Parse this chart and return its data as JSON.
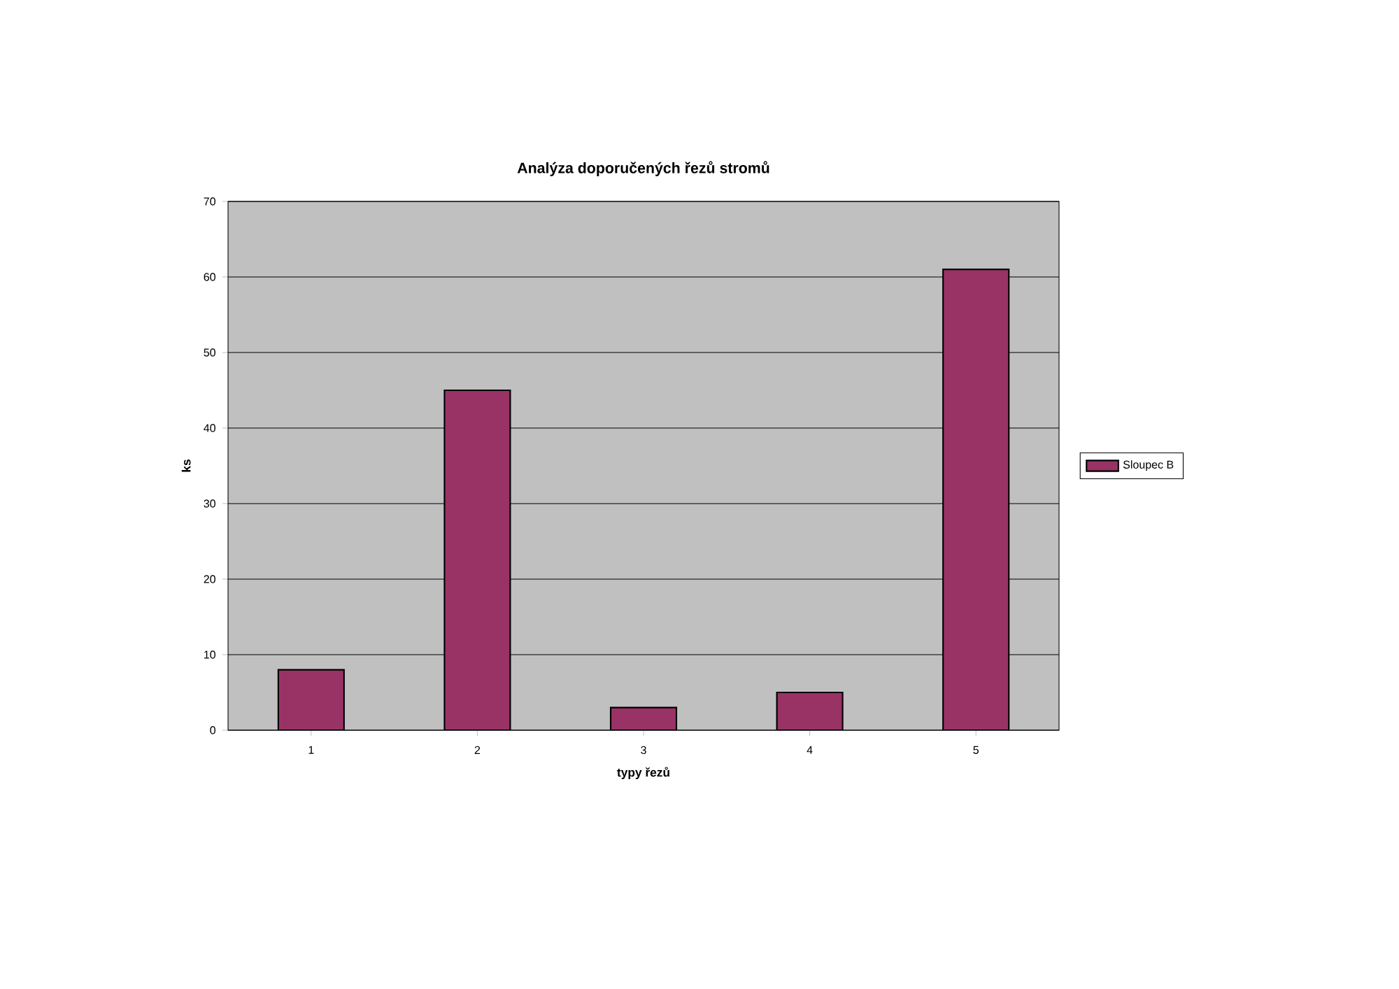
{
  "chart_data": {
    "type": "bar",
    "title": "Analýza doporučených řezů stromů",
    "xlabel": "typy řezů",
    "ylabel": "ks",
    "categories": [
      "1",
      "2",
      "3",
      "4",
      "5"
    ],
    "series": [
      {
        "name": "Sloupec B",
        "color": "#993366",
        "values": [
          8,
          45,
          3,
          5,
          61
        ]
      }
    ],
    "ylim": [
      0,
      70
    ],
    "yticks": [
      0,
      10,
      20,
      30,
      40,
      50,
      60,
      70
    ],
    "grid": "y",
    "legend": "right"
  }
}
